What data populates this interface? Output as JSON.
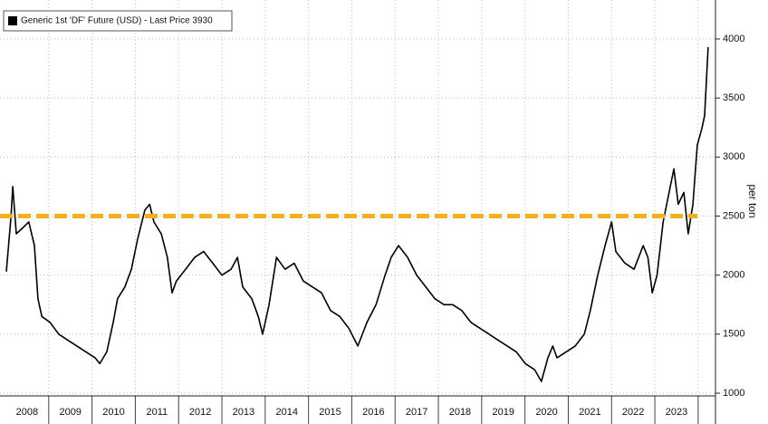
{
  "chart_data": {
    "type": "line",
    "y_label": "per ton",
    "x": [
      2008.02,
      2008.13,
      2008.17,
      2008.25,
      2008.4,
      2008.54,
      2008.67,
      2008.75,
      2008.84,
      2009.03,
      2009.23,
      2009.44,
      2009.65,
      2009.86,
      2010.07,
      2010.18,
      2010.34,
      2010.49,
      2010.59,
      2010.76,
      2010.91,
      2011.05,
      2011.22,
      2011.33,
      2011.43,
      2011.6,
      2011.74,
      2011.85,
      2011.95,
      2012.16,
      2012.37,
      2012.58,
      2012.79,
      2013.0,
      2013.21,
      2013.36,
      2013.48,
      2013.69,
      2013.84,
      2013.94,
      2014.09,
      2014.26,
      2014.46,
      2014.67,
      2014.88,
      2015.09,
      2015.3,
      2015.51,
      2015.72,
      2015.93,
      2016.14,
      2016.35,
      2016.56,
      2016.77,
      2016.91,
      2017.08,
      2017.29,
      2017.5,
      2017.71,
      2017.92,
      2018.13,
      2018.33,
      2018.54,
      2018.75,
      2018.96,
      2019.17,
      2019.38,
      2019.59,
      2019.8,
      2020.01,
      2020.22,
      2020.38,
      2020.53,
      2020.64,
      2020.74,
      2020.95,
      2021.16,
      2021.37,
      2021.51,
      2021.68,
      2021.85,
      2022.0,
      2022.1,
      2022.31,
      2022.52,
      2022.73,
      2022.84,
      2022.94,
      2023.05,
      2023.19,
      2023.33,
      2023.44,
      2023.54,
      2023.67,
      2023.77,
      2023.88,
      2023.98,
      2024.09,
      2024.15,
      2024.23
    ],
    "series": [
      {
        "name": "Generic 1st 'DF' Future (USD) - Last Price 3930",
        "color": "#000000",
        "values": [
          2030,
          2500,
          2750,
          2350,
          2400,
          2450,
          2250,
          1800,
          1650,
          1600,
          1500,
          1450,
          1400,
          1350,
          1300,
          1250,
          1350,
          1600,
          1800,
          1900,
          2050,
          2300,
          2550,
          2600,
          2450,
          2350,
          2150,
          1850,
          1950,
          2050,
          2150,
          2200,
          2100,
          2000,
          2050,
          2150,
          1900,
          1800,
          1650,
          1500,
          1750,
          2150,
          2050,
          2100,
          1950,
          1900,
          1850,
          1700,
          1650,
          1550,
          1400,
          1600,
          1750,
          2000,
          2150,
          2250,
          2150,
          2000,
          1900,
          1800,
          1750,
          1750,
          1700,
          1600,
          1550,
          1500,
          1450,
          1400,
          1350,
          1250,
          1200,
          1100,
          1300,
          1400,
          1300,
          1350,
          1400,
          1500,
          1700,
          2000,
          2250,
          2450,
          2200,
          2100,
          2050,
          2250,
          2150,
          1850,
          2000,
          2450,
          2700,
          2900,
          2600,
          2700,
          2350,
          2600,
          3100,
          3250,
          3350,
          3930
        ]
      }
    ],
    "reference_line": {
      "value": 2500,
      "color": "#f2b01e"
    },
    "xlim": [
      2008,
      2024.4
    ],
    "ylim": [
      977,
      4330
    ],
    "yticks": [
      1000,
      1500,
      2000,
      2500,
      3000,
      3500,
      4000
    ],
    "xticks": [
      {
        "value": 2008.5,
        "label": "2008"
      },
      {
        "value": 2009.5,
        "label": "2009"
      },
      {
        "value": 2010.5,
        "label": "2010"
      },
      {
        "value": 2011.5,
        "label": "2011"
      },
      {
        "value": 2012.5,
        "label": "2012"
      },
      {
        "value": 2013.5,
        "label": "2013"
      },
      {
        "value": 2014.5,
        "label": "2014"
      },
      {
        "value": 2015.5,
        "label": "2015"
      },
      {
        "value": 2016.5,
        "label": "2016"
      },
      {
        "value": 2017.5,
        "label": "2017"
      },
      {
        "value": 2018.5,
        "label": "2018"
      },
      {
        "value": 2019.5,
        "label": "2019"
      },
      {
        "value": 2020.5,
        "label": "2020"
      },
      {
        "value": 2021.5,
        "label": "2021"
      },
      {
        "value": 2022.5,
        "label": "2022"
      },
      {
        "value": 2023.5,
        "label": "2023"
      }
    ],
    "x_separators": [
      2009,
      2010,
      2011,
      2012,
      2013,
      2014,
      2015,
      2016,
      2017,
      2018,
      2019,
      2020,
      2021,
      2022,
      2023,
      2024
    ],
    "grid": true
  }
}
